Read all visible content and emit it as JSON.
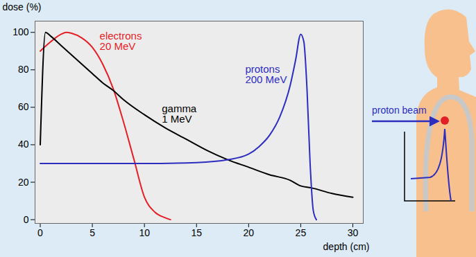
{
  "chart_data": {
    "type": "line",
    "x_label": "depth (cm)",
    "y_label": "dose (%)",
    "xlim": [
      -0.5,
      31
    ],
    "ylim": [
      -2,
      106
    ],
    "xticks": [
      0,
      5,
      10,
      15,
      20,
      25,
      30
    ],
    "yticks": [
      0,
      20,
      40,
      60,
      80,
      100
    ],
    "grid": false,
    "series": [
      {
        "name": "electrons 20 MeV",
        "color": "#e41e26",
        "x": [
          0,
          1,
          2,
          2.5,
          3,
          4,
          5,
          6,
          7,
          8,
          9,
          10,
          11,
          12,
          12.5
        ],
        "values": [
          90,
          95,
          99,
          100,
          99.5,
          97,
          92,
          83,
          70,
          52,
          32,
          12,
          4,
          1,
          0
        ]
      },
      {
        "name": "gamma 1 MeV",
        "color": "#000000",
        "x": [
          0,
          0.5,
          1,
          2,
          3,
          4,
          5,
          6,
          7,
          8,
          10,
          12,
          14,
          16,
          18,
          20,
          22,
          24,
          25,
          26,
          28,
          30
        ],
        "values": [
          40,
          100,
          98,
          93,
          88,
          83,
          78,
          73,
          69,
          64,
          56,
          49,
          43,
          37,
          32,
          28,
          24,
          21,
          18,
          17,
          14,
          12
        ]
      },
      {
        "name": "protons 200 MeV",
        "color": "#2d2dbf",
        "x": [
          0,
          5,
          10,
          15,
          18,
          20,
          21,
          22,
          23,
          24,
          24.5,
          25,
          25.3,
          25.6,
          25.9,
          26.2,
          26.5
        ],
        "values": [
          30,
          30,
          30,
          30.5,
          32,
          35,
          39,
          45,
          55,
          72,
          85,
          99,
          95,
          70,
          30,
          5,
          0
        ]
      }
    ]
  },
  "illustration": {
    "label": "proton beam"
  }
}
